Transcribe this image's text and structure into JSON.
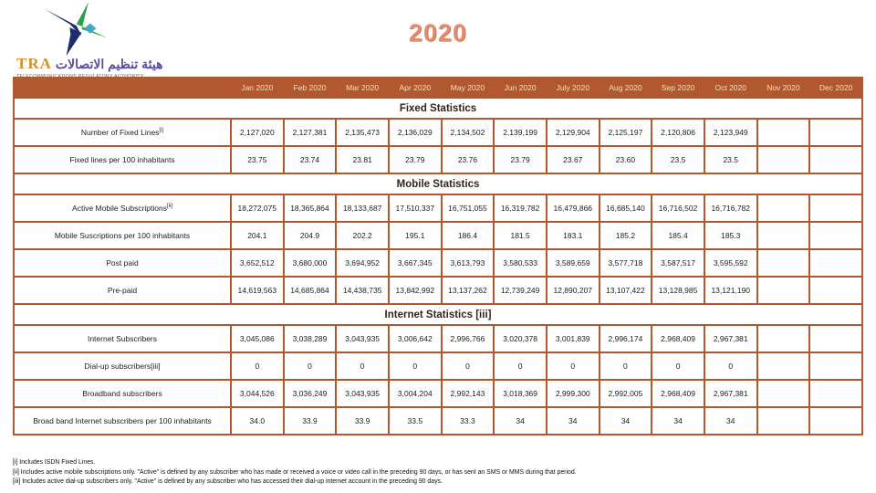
{
  "page_title": "2020",
  "logo": {
    "tra": "TRA",
    "arabic": "هيئة تنظيم الاتصالات",
    "subtitle": "TELECOMMUNICATIONS REGULATORY AUTHORITY"
  },
  "colors": {
    "table_border": "#b1582e",
    "header_bg": "#b1582e",
    "header_text": "#f7ddc2",
    "title_text": "#e68a6e",
    "logo_green": "#2e9e4f",
    "logo_navy": "#1e2d6e",
    "logo_teal": "#3fa9c9"
  },
  "table": {
    "months": [
      "Jan 2020",
      "Feb 2020",
      "Mar 2020",
      "Apr 2020",
      "May 2020",
      "Jun 2020",
      "July 2020",
      "Aug 2020",
      "Sep 2020",
      "Oct 2020",
      "Nov 2020",
      "Dec 2020"
    ],
    "sections": [
      {
        "title": "Fixed Statistics",
        "rows": [
          {
            "label": "Number of  Fixed Lines",
            "sup": "[i]",
            "values": [
              "2,127,020",
              "2,127,381",
              "2,135,473",
              "2,136,029",
              "2,134,502",
              "2,139,199",
              "2,129,904",
              "2,125,197",
              "2,120,806",
              "2,123,949",
              "",
              ""
            ]
          },
          {
            "label": "Fixed lines per 100 inhabitants",
            "sup": "",
            "values": [
              "23.75",
              "23.74",
              "23.81",
              "23.79",
              "23.76",
              "23.79",
              "23.67",
              "23.60",
              "23.5",
              "23.5",
              "",
              ""
            ]
          }
        ]
      },
      {
        "title": "Mobile Statistics",
        "rows": [
          {
            "label": "Active Mobile Subscriptions",
            "sup": "[ii]",
            "values": [
              "18,272,075",
              "18,365,864",
              "18,133,687",
              "17,510,337",
              "16,751,055",
              "16,319,782",
              "16,479,866",
              "16,685,140",
              "16,716,502",
              "16,716,782",
              "",
              ""
            ]
          },
          {
            "label": "Mobile Suscriptions per 100 inhabitants",
            "sup": "",
            "values": [
              "204.1",
              "204.9",
              "202.2",
              "195.1",
              "186.4",
              "181.5",
              "183.1",
              "185.2",
              "185.4",
              "185.3",
              "",
              ""
            ]
          },
          {
            "label": "Post paid",
            "sup": "",
            "values": [
              "3,652,512",
              "3,680,000",
              "3,694,952",
              "3,667,345",
              "3,613,793",
              "3,580,533",
              "3,589,659",
              "3,577,718",
              "3,587,517",
              "3,595,592",
              "",
              ""
            ]
          },
          {
            "label": "Pre-paid",
            "sup": "",
            "values": [
              "14,619,563",
              "14,685,864",
              "14,438,735",
              "13,842,992",
              "13,137,262",
              "12,739,249",
              "12,890,207",
              "13,107,422",
              "13,128,985",
              "13,121,190",
              "",
              ""
            ]
          }
        ]
      },
      {
        "title": "Internet  Statistics [iii]",
        "rows": [
          {
            "label": "Internet Subscribers",
            "sup": "",
            "values": [
              "3,045,086",
              "3,038,289",
              "3,043,935",
              "3,006,642",
              "2,996,766",
              "3,020,378",
              "3,001,839",
              "2,996,174",
              "2,968,409",
              "2,967,381",
              "",
              ""
            ]
          },
          {
            "label": "Dial-up subscribers[iii]",
            "sup": "",
            "values": [
              "0",
              "0",
              "0",
              "0",
              "0",
              "0",
              "0",
              "0",
              "0",
              "0",
              "",
              ""
            ]
          },
          {
            "label": "Broadband subscribers",
            "sup": "",
            "values": [
              "3,044,526",
              "3,036,249",
              "3,043,935",
              "3,004,204",
              "2,992,143",
              "3,018,369",
              "2,999,300",
              "2,992,005",
              "2,968,409",
              "2,967,381",
              "",
              ""
            ]
          },
          {
            "label": "Broad band Internet subscribers per 100 inhabitants",
            "sup": "",
            "values": [
              "34.0",
              "33.9",
              "33.9",
              "33.5",
              "33.3",
              "34",
              "34",
              "34",
              "34",
              "34",
              "",
              ""
            ]
          }
        ]
      }
    ]
  },
  "footnotes": [
    "[i] Includes ISDN Fixed Lines.",
    "[ii] Includes active mobile subscriptions only.  \"Active\" is defined by any subscriber who has made or received a voice or video call in the preceding 90 days, or has sent an SMS or MMS during that period.",
    "[iii] Includes active dial-up subscribers only.  \"Active\" is defined by any subscriber who has accessed their dial-up internet account in the preceding 90 days."
  ]
}
